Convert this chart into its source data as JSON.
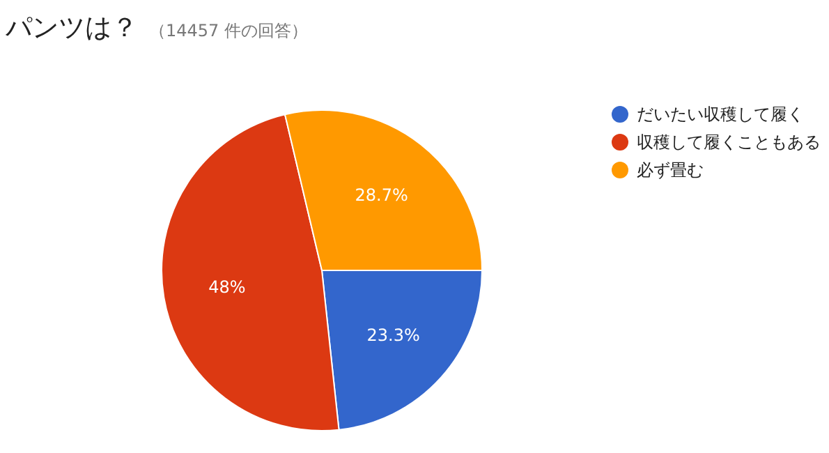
{
  "chart_data": {
    "type": "pie",
    "title": "パンツは？",
    "subtitle": "（14457 件の回答）",
    "categories": [
      "だいたい収穫して履く",
      "収穫して履くこともある",
      "必ず畳む"
    ],
    "values": [
      23.3,
      48,
      28.7
    ],
    "colors": [
      "#3366cc",
      "#dc3912",
      "#ff9900"
    ],
    "value_labels": [
      "23.3%",
      "48%",
      "28.7%"
    ],
    "legend": "top right"
  }
}
